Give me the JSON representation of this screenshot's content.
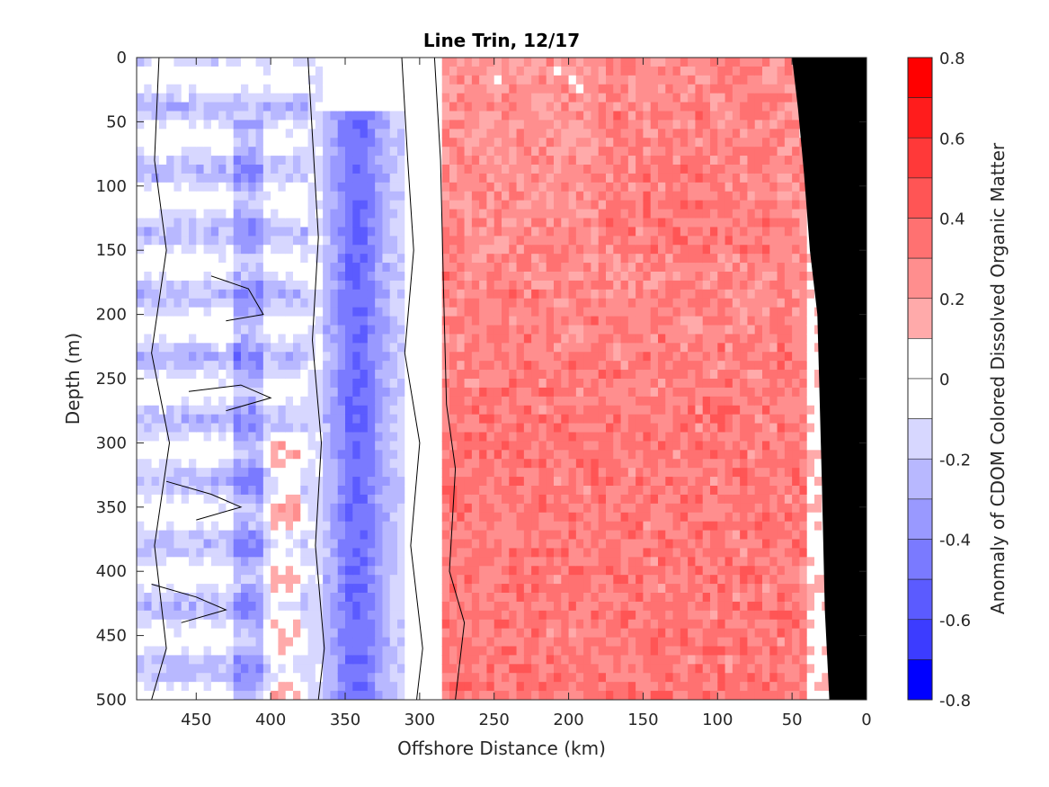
{
  "chart_data": {
    "type": "heatmap",
    "subtype": "filled-contour",
    "title": "Line Trin, 12/17",
    "xlabel": "Offshore Distance (km)",
    "ylabel": "Depth (m)",
    "colorbar_label": "Anomaly of CDOM Colored Dissolved Organic Matter",
    "xlim": [
      490,
      0
    ],
    "x_reversed": true,
    "ylim": [
      500,
      0
    ],
    "y_reversed": true,
    "xticks": [
      450,
      400,
      350,
      300,
      250,
      200,
      150,
      100,
      50,
      0
    ],
    "yticks": [
      0,
      50,
      100,
      150,
      200,
      250,
      300,
      350,
      400,
      450,
      500
    ],
    "colorbar": {
      "range": [
        -0.8,
        0.8
      ],
      "ticks": [
        0.8,
        0.6,
        0.4,
        0.2,
        0,
        -0.2,
        -0.4,
        -0.6,
        -0.8
      ],
      "levels": [
        {
          "from": 0.7,
          "to": 0.8,
          "color": "#ff0000"
        },
        {
          "from": 0.6,
          "to": 0.7,
          "color": "#ff1c1c"
        },
        {
          "from": 0.5,
          "to": 0.6,
          "color": "#ff3939"
        },
        {
          "from": 0.4,
          "to": 0.5,
          "color": "#ff5555"
        },
        {
          "from": 0.3,
          "to": 0.4,
          "color": "#ff7171"
        },
        {
          "from": 0.2,
          "to": 0.3,
          "color": "#ff8e8e"
        },
        {
          "from": 0.1,
          "to": 0.2,
          "color": "#ffaaaa"
        },
        {
          "from": 0.0,
          "to": 0.1,
          "color": "#ffffff"
        },
        {
          "from": -0.1,
          "to": 0.0,
          "color": "#ffffff"
        },
        {
          "from": -0.2,
          "to": -0.1,
          "color": "#d7d7ff"
        },
        {
          "from": -0.3,
          "to": -0.2,
          "color": "#b8b8ff"
        },
        {
          "from": -0.4,
          "to": -0.3,
          "color": "#9999ff"
        },
        {
          "from": -0.5,
          "to": -0.4,
          "color": "#7a7aff"
        },
        {
          "from": -0.6,
          "to": -0.5,
          "color": "#5b5bff"
        },
        {
          "from": -0.7,
          "to": -0.6,
          "color": "#3c3cff"
        },
        {
          "from": -0.8,
          "to": -0.7,
          "color": "#0000ff"
        }
      ]
    },
    "regions": [
      {
        "x_range": [
          490,
          375
        ],
        "depth_range": [
          0,
          500
        ],
        "approx_anomaly": -0.15,
        "note": "weak negative / mixed near zero"
      },
      {
        "x_range": [
          375,
          310
        ],
        "depth_range": [
          50,
          500
        ],
        "approx_anomaly": -0.45,
        "note": "negative band centered ~340 km"
      },
      {
        "x_range": [
          290,
          40
        ],
        "depth_range": [
          0,
          500
        ],
        "approx_anomaly": 0.3,
        "note": "positive anomaly, stronger at depth"
      },
      {
        "x_range": [
          35,
          0
        ],
        "depth_range": [
          0,
          500
        ],
        "approx_anomaly": 0.1,
        "note": "near zero next to shelf"
      }
    ],
    "mask": {
      "name": "bathymetry",
      "color": "#000000",
      "boundary": [
        [
          0,
          0
        ],
        [
          0,
          500
        ],
        [
          25,
          500
        ],
        [
          28,
          430
        ],
        [
          30,
          330
        ],
        [
          33,
          200
        ],
        [
          38,
          150
        ],
        [
          42,
          90
        ],
        [
          46,
          40
        ],
        [
          50,
          0
        ]
      ]
    }
  }
}
